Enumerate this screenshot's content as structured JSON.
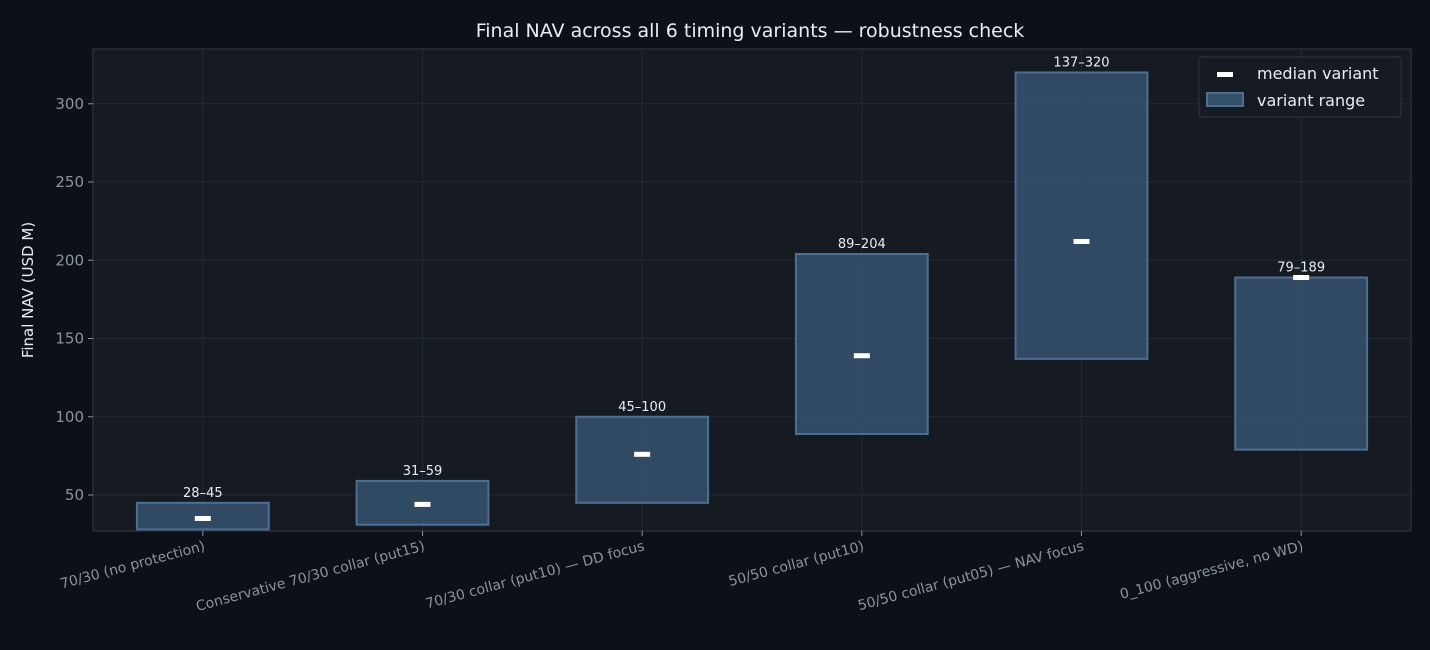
{
  "chart_data": {
    "type": "bar",
    "title": "Final NAV across all 6 timing variants — robustness check",
    "xlabel": "",
    "ylabel": "Final NAV (USD M)",
    "ylim": [
      27,
      335
    ],
    "yticks": [
      50,
      100,
      150,
      200,
      250,
      300
    ],
    "grid": true,
    "legend_position": "top-right",
    "legend": [
      "median variant",
      "variant range"
    ],
    "categories": [
      "70/30 (no protection)",
      "Conservative 70/30 collar (put15)",
      "70/30 collar (put10) — DD focus",
      "50/50 collar (put10)",
      "50/50 collar (put05) — NAV focus",
      "0_100 (aggressive, no WD)"
    ],
    "series": [
      {
        "name": "variant range",
        "low": [
          28,
          31,
          45,
          89,
          137,
          79
        ],
        "high": [
          45,
          59,
          100,
          204,
          320,
          189
        ]
      },
      {
        "name": "median variant",
        "values": [
          35,
          44,
          76,
          139,
          212,
          189
        ]
      }
    ],
    "range_labels": [
      "28–45",
      "31–59",
      "45–100",
      "89–204",
      "137–320",
      "79–189"
    ],
    "colors": {
      "page_bg": "#0d1117",
      "plot_bg": "#161b22",
      "bar_fill": "#34506b",
      "bar_edge": "#4a7094",
      "median": "#ffffff",
      "grid": "#222a35",
      "spine": "#30363d"
    }
  }
}
